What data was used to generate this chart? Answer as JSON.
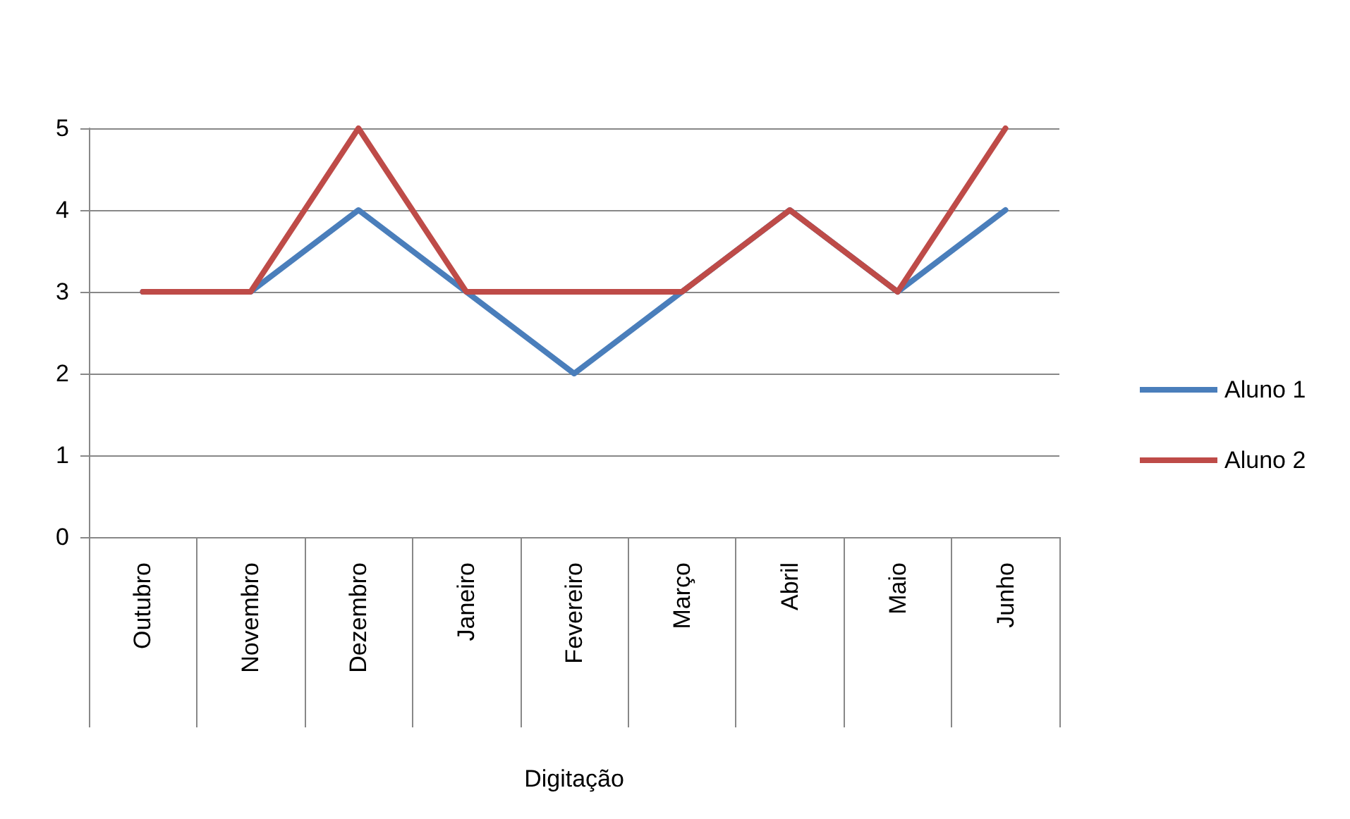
{
  "chart_data": {
    "type": "line",
    "xlabel": "Digitação",
    "categories": [
      "Outubro",
      "Novembro",
      "Dezembro",
      "Janeiro",
      "Fevereiro",
      "Março",
      "Abril",
      "Maio",
      "Junho"
    ],
    "series": [
      {
        "name": "Aluno 1",
        "color": "#4a7ebb",
        "values": [
          3,
          3,
          4,
          3,
          2,
          3,
          4,
          3,
          4
        ]
      },
      {
        "name": "Aluno 2",
        "color": "#be4b48",
        "values": [
          3,
          3,
          5,
          3,
          3,
          3,
          4,
          3,
          5
        ]
      }
    ],
    "ylim": [
      0,
      5
    ],
    "yticks": [
      0,
      1,
      2,
      3,
      4,
      5
    ],
    "grid": "y",
    "legend": "right",
    "marker": "none",
    "line_style": "solid"
  }
}
